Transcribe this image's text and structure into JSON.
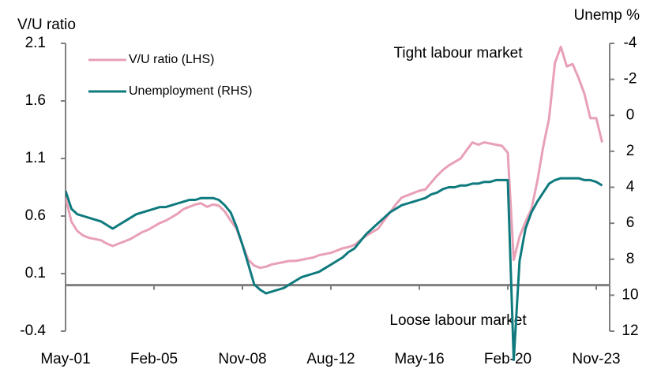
{
  "chart_data": {
    "type": "line",
    "ylabel": "V/U ratio",
    "y2label": "Unemp %",
    "annotations": [
      "Tight labour market",
      "Loose labour market"
    ],
    "categories": [
      "May-01",
      null,
      null,
      null,
      null,
      null,
      null,
      null,
      null,
      null,
      null,
      null,
      null,
      null,
      null,
      "Feb-05",
      null,
      null,
      null,
      null,
      null,
      null,
      null,
      null,
      null,
      null,
      null,
      null,
      null,
      null,
      "Nov-08",
      null,
      null,
      null,
      null,
      null,
      null,
      null,
      null,
      null,
      null,
      null,
      null,
      null,
      null,
      "Aug-12",
      null,
      null,
      null,
      null,
      null,
      null,
      null,
      null,
      null,
      null,
      null,
      null,
      null,
      null,
      "May-16",
      null,
      null,
      null,
      null,
      null,
      null,
      null,
      null,
      null,
      null,
      null,
      null,
      null,
      null,
      "Feb-20",
      null,
      null,
      null,
      null,
      null,
      null,
      null,
      null,
      null,
      null,
      null,
      null,
      null,
      null,
      "Nov-23",
      null
    ],
    "series": [
      {
        "name": "V/U ratio (LHS)",
        "color": "#e8a0b6",
        "values": [
          0.76,
          0.55,
          0.47,
          0.43,
          0.41,
          0.4,
          0.39,
          0.36,
          0.34,
          0.36,
          0.38,
          0.4,
          0.43,
          0.46,
          0.48,
          0.51,
          0.54,
          0.56,
          0.59,
          0.62,
          0.66,
          0.68,
          0.7,
          0.71,
          0.68,
          0.7,
          0.69,
          0.64,
          0.56,
          0.49,
          0.35,
          0.22,
          0.17,
          0.15,
          0.16,
          0.18,
          0.19,
          0.2,
          0.21,
          0.21,
          0.22,
          0.23,
          0.24,
          0.26,
          0.27,
          0.28,
          0.3,
          0.32,
          0.33,
          0.35,
          0.39,
          0.43,
          0.46,
          0.49,
          0.56,
          0.63,
          0.7,
          0.76,
          0.78,
          0.8,
          0.82,
          0.83,
          0.89,
          0.95,
          1.0,
          1.04,
          1.07,
          1.1,
          1.17,
          1.24,
          1.22,
          1.24,
          1.23,
          1.22,
          1.21,
          1.15,
          0.22,
          0.42,
          0.55,
          0.66,
          0.9,
          1.2,
          1.45,
          1.93,
          2.07,
          1.9,
          1.92,
          1.8,
          1.66,
          1.45,
          1.45,
          1.24
        ]
      },
      {
        "name": "Unemployment (RHS)",
        "color": "#0e7a7e",
        "axis": "y2",
        "values": [
          4.2,
          5.2,
          5.5,
          5.6,
          5.7,
          5.8,
          5.9,
          6.1,
          6.3,
          6.1,
          5.9,
          5.7,
          5.5,
          5.4,
          5.3,
          5.2,
          5.1,
          5.1,
          5.0,
          4.9,
          4.8,
          4.7,
          4.7,
          4.6,
          4.6,
          4.6,
          4.7,
          5.0,
          5.4,
          6.2,
          7.2,
          8.3,
          9.4,
          9.7,
          9.9,
          9.8,
          9.7,
          9.6,
          9.4,
          9.2,
          9.0,
          8.9,
          8.8,
          8.7,
          8.5,
          8.3,
          8.1,
          7.9,
          7.6,
          7.4,
          7.0,
          6.6,
          6.3,
          6.0,
          5.7,
          5.4,
          5.2,
          5.0,
          4.9,
          4.8,
          4.7,
          4.6,
          4.4,
          4.3,
          4.1,
          4.0,
          4.0,
          3.9,
          3.9,
          3.8,
          3.8,
          3.7,
          3.7,
          3.6,
          3.6,
          3.6,
          13.6,
          8.1,
          6.3,
          5.4,
          4.8,
          4.3,
          3.8,
          3.6,
          3.5,
          3.5,
          3.5,
          3.5,
          3.6,
          3.6,
          3.7,
          3.9
        ]
      }
    ],
    "ylim": [
      -0.4,
      2.1
    ],
    "yticks": [
      -0.4,
      0.1,
      0.6,
      1.1,
      1.6,
      2.1
    ],
    "y2lim": [
      12,
      -4
    ],
    "y2ticks": [
      -4,
      -2,
      0,
      2,
      4,
      6,
      8,
      10,
      12
    ],
    "legend": "upper left"
  }
}
